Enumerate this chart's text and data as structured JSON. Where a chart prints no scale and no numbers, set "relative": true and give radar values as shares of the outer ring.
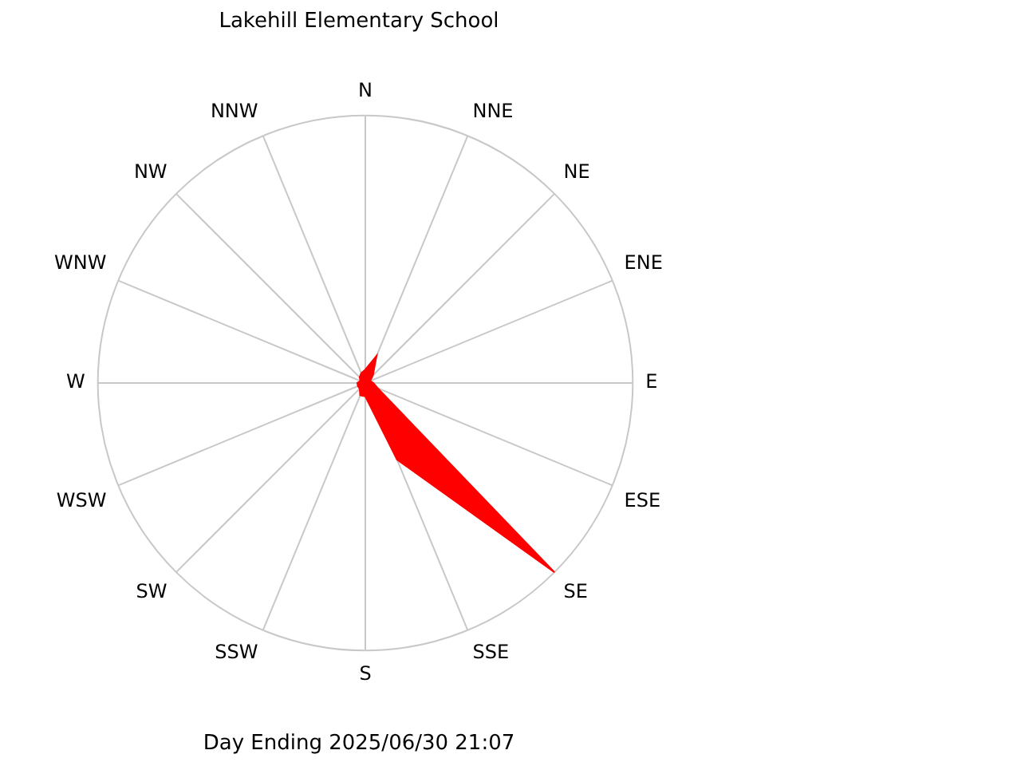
{
  "chart_data": {
    "type": "radar",
    "title": "Lakehill Elementary School",
    "annotations": [
      "Day Ending 2025/06/30 21:07"
    ],
    "relative": true,
    "grid": true,
    "legend": false,
    "marker": "none",
    "categories": [
      "N",
      "NNE",
      "NE",
      "ENE",
      "E",
      "ESE",
      "SE",
      "SSE",
      "S",
      "SSW",
      "SW",
      "WSW",
      "W",
      "WNW",
      "NW",
      "NNW"
    ],
    "series": [
      {
        "color": "#ff0000",
        "values": [
          0.05,
          0.11,
          0.04,
          0.02,
          0.03,
          0.05,
          1.0,
          0.31,
          0.05,
          0.05,
          0.03,
          0.03,
          0.03,
          0.02,
          0.03,
          0.04
        ]
      }
    ]
  }
}
